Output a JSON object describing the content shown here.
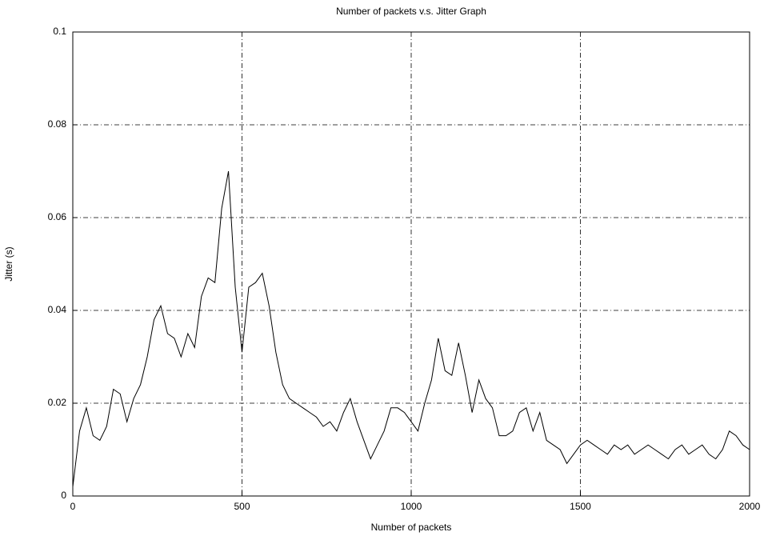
{
  "chart_data": {
    "type": "line",
    "title": "Number of packets v.s. Jitter Graph",
    "x_label": "Number of packets",
    "y_label": "Jitter (s)",
    "x": [
      0,
      20,
      40,
      60,
      80,
      100,
      120,
      140,
      160,
      180,
      200,
      220,
      240,
      260,
      280,
      300,
      320,
      340,
      360,
      380,
      400,
      420,
      440,
      460,
      480,
      500,
      520,
      540,
      560,
      580,
      600,
      620,
      640,
      660,
      680,
      700,
      720,
      740,
      760,
      780,
      800,
      820,
      840,
      860,
      880,
      900,
      920,
      940,
      960,
      980,
      1000,
      1020,
      1040,
      1060,
      1080,
      1100,
      1120,
      1140,
      1160,
      1180,
      1200,
      1220,
      1240,
      1260,
      1280,
      1300,
      1320,
      1340,
      1360,
      1380,
      1400,
      1420,
      1440,
      1460,
      1480,
      1500,
      1520,
      1540,
      1560,
      1580,
      1600,
      1620,
      1640,
      1660,
      1680,
      1700,
      1720,
      1740,
      1760,
      1780,
      1800,
      1820,
      1840,
      1860,
      1880,
      1900,
      1920,
      1940,
      1960,
      1980,
      2000
    ],
    "series": [
      {
        "color": "#000000",
        "values": [
          0.002,
          0.014,
          0.019,
          0.013,
          0.012,
          0.015,
          0.023,
          0.022,
          0.016,
          0.021,
          0.024,
          0.03,
          0.038,
          0.041,
          0.035,
          0.034,
          0.03,
          0.035,
          0.032,
          0.043,
          0.047,
          0.046,
          0.062,
          0.07,
          0.045,
          0.031,
          0.045,
          0.046,
          0.048,
          0.041,
          0.031,
          0.024,
          0.021,
          0.02,
          0.019,
          0.018,
          0.017,
          0.015,
          0.016,
          0.014,
          0.018,
          0.021,
          0.016,
          0.012,
          0.008,
          0.011,
          0.014,
          0.019,
          0.019,
          0.018,
          0.016,
          0.014,
          0.02,
          0.025,
          0.034,
          0.027,
          0.026,
          0.033,
          0.026,
          0.018,
          0.025,
          0.021,
          0.019,
          0.013,
          0.013,
          0.014,
          0.018,
          0.019,
          0.014,
          0.018,
          0.012,
          0.011,
          0.01,
          0.007,
          0.009,
          0.011,
          0.012,
          0.011,
          0.01,
          0.009,
          0.011,
          0.01,
          0.011,
          0.009,
          0.01,
          0.011,
          0.01,
          0.009,
          0.008,
          0.01,
          0.011,
          0.009,
          0.01,
          0.011,
          0.009,
          0.008,
          0.01,
          0.014,
          0.013,
          0.011,
          0.01
        ]
      }
    ],
    "xlim": [
      0,
      2000
    ],
    "xticks": [
      0,
      500,
      1000,
      1500,
      2000
    ],
    "ylim": [
      0,
      0.1
    ],
    "yticks": [
      0,
      0.02,
      0.04,
      0.06,
      0.08,
      0.1
    ],
    "grid": true
  }
}
